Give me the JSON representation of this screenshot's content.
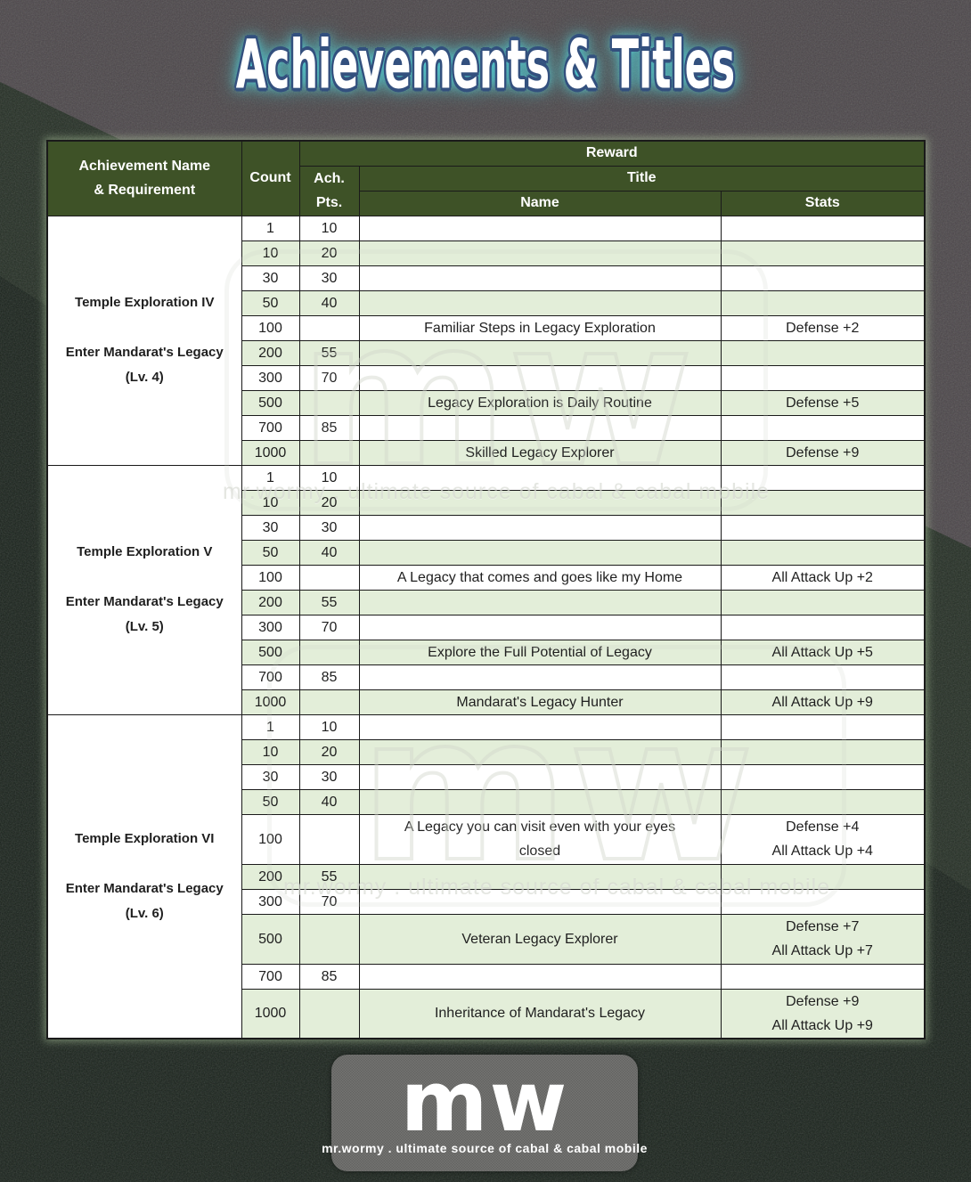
{
  "page": {
    "title": "Achievements & Titles"
  },
  "table": {
    "header": {
      "achievement_line1": "Achievement Name",
      "achievement_line2": "& Requirement",
      "count": "Count",
      "reward": "Reward",
      "ach_pts_line1": "Ach.",
      "ach_pts_line2": "Pts.",
      "title": "Title",
      "name": "Name",
      "stats": "Stats"
    },
    "sections": [
      {
        "achievement": "Temple Exploration IV",
        "requirement_lines": [
          "Enter Mandarat's Legacy",
          "(Lv. 4)"
        ],
        "rows": [
          {
            "count": "1",
            "pts": "10",
            "name": [],
            "stats": []
          },
          {
            "count": "10",
            "pts": "20",
            "name": [],
            "stats": []
          },
          {
            "count": "30",
            "pts": "30",
            "name": [],
            "stats": []
          },
          {
            "count": "50",
            "pts": "40",
            "name": [],
            "stats": []
          },
          {
            "count": "100",
            "pts": "",
            "name": [
              "Familiar Steps in Legacy Exploration"
            ],
            "stats": [
              "Defense +2"
            ]
          },
          {
            "count": "200",
            "pts": "55",
            "name": [],
            "stats": []
          },
          {
            "count": "300",
            "pts": "70",
            "name": [],
            "stats": []
          },
          {
            "count": "500",
            "pts": "",
            "name": [
              "Legacy Exploration is Daily Routine"
            ],
            "stats": [
              "Defense +5"
            ]
          },
          {
            "count": "700",
            "pts": "85",
            "name": [],
            "stats": []
          },
          {
            "count": "1000",
            "pts": "",
            "name": [
              "Skilled Legacy Explorer"
            ],
            "stats": [
              "Defense +9"
            ]
          }
        ]
      },
      {
        "achievement": "Temple Exploration V",
        "requirement_lines": [
          "Enter Mandarat's Legacy",
          "(Lv. 5)"
        ],
        "rows": [
          {
            "count": "1",
            "pts": "10",
            "name": [],
            "stats": []
          },
          {
            "count": "10",
            "pts": "20",
            "name": [],
            "stats": []
          },
          {
            "count": "30",
            "pts": "30",
            "name": [],
            "stats": []
          },
          {
            "count": "50",
            "pts": "40",
            "name": [],
            "stats": []
          },
          {
            "count": "100",
            "pts": "",
            "name": [
              "A Legacy that comes and goes like my Home"
            ],
            "stats": [
              "All Attack Up +2"
            ]
          },
          {
            "count": "200",
            "pts": "55",
            "name": [],
            "stats": []
          },
          {
            "count": "300",
            "pts": "70",
            "name": [],
            "stats": []
          },
          {
            "count": "500",
            "pts": "",
            "name": [
              "Explore the Full Potential of Legacy"
            ],
            "stats": [
              "All Attack Up +5"
            ]
          },
          {
            "count": "700",
            "pts": "85",
            "name": [],
            "stats": []
          },
          {
            "count": "1000",
            "pts": "",
            "name": [
              "Mandarat's Legacy Hunter"
            ],
            "stats": [
              "All Attack Up +9"
            ]
          }
        ]
      },
      {
        "achievement": "Temple Exploration VI",
        "requirement_lines": [
          "Enter Mandarat's Legacy",
          "(Lv. 6)"
        ],
        "rows": [
          {
            "count": "1",
            "pts": "10",
            "name": [],
            "stats": []
          },
          {
            "count": "10",
            "pts": "20",
            "name": [],
            "stats": []
          },
          {
            "count": "30",
            "pts": "30",
            "name": [],
            "stats": []
          },
          {
            "count": "50",
            "pts": "40",
            "name": [],
            "stats": []
          },
          {
            "count": "100",
            "pts": "",
            "name": [
              "A Legacy you can visit even with your eyes",
              "closed"
            ],
            "stats": [
              "Defense +4",
              "All Attack Up +4"
            ]
          },
          {
            "count": "200",
            "pts": "55",
            "name": [],
            "stats": []
          },
          {
            "count": "300",
            "pts": "70",
            "name": [],
            "stats": []
          },
          {
            "count": "500",
            "pts": "",
            "name": [
              "Veteran Legacy Explorer"
            ],
            "stats": [
              "Defense +7",
              "All Attack Up +7"
            ]
          },
          {
            "count": "700",
            "pts": "85",
            "name": [],
            "stats": []
          },
          {
            "count": "1000",
            "pts": "",
            "name": [
              "Inheritance of Mandarat's Legacy"
            ],
            "stats": [
              "Defense +9",
              "All Attack Up +9"
            ]
          }
        ]
      }
    ]
  },
  "watermark": {
    "logo": "mw",
    "tagline": "mr.wormy . ultimate source of cabal & cabal mobile"
  },
  "footer": {
    "logo": "mw",
    "tagline": "mr.wormy . ultimate source of cabal & cabal mobile"
  },
  "colors": {
    "header_bg": "#3e5227",
    "row_bg": "#ffffff",
    "row_alt_bg": "#e3eed9",
    "grid_border": "#1a1a1a",
    "header_text": "#ffffff",
    "body_text": "#1f1f1f",
    "bg_top": "#4a4548",
    "bg_mid": "#232d23",
    "bg_bottom": "#18211a",
    "footer_bg": "#6b6b69",
    "title_fill": "#ffffff",
    "title_outline": "#33507e",
    "title_glow": "#52d8e0"
  }
}
